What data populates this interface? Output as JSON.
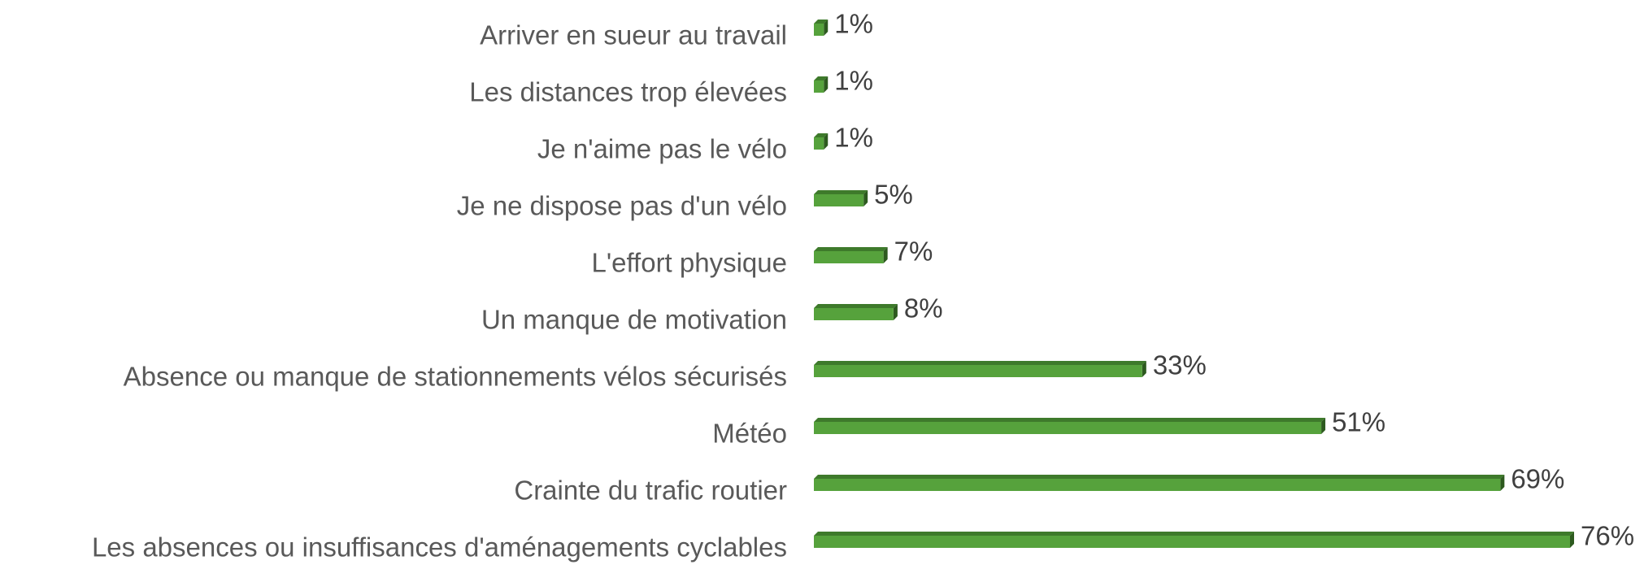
{
  "chart_data": {
    "type": "bar",
    "orientation": "horizontal",
    "categories": [
      "Arriver en sueur au travail",
      "Les distances trop élevées",
      "Je n'aime pas le vélo",
      "Je ne dispose pas d'un vélo",
      "L'effort physique",
      "Un manque de motivation",
      "Absence ou manque de stationnements vélos sécurisés",
      "Météo",
      "Crainte du trafic routier",
      "Les absences ou insuffisances d'aménagements cyclables"
    ],
    "values": [
      1,
      1,
      1,
      5,
      7,
      8,
      33,
      51,
      69,
      76
    ],
    "value_labels": [
      "1%",
      "1%",
      "1%",
      "5%",
      "7%",
      "8%",
      "33%",
      "51%",
      "69%",
      "76%"
    ],
    "color": "#56a23c"
  }
}
